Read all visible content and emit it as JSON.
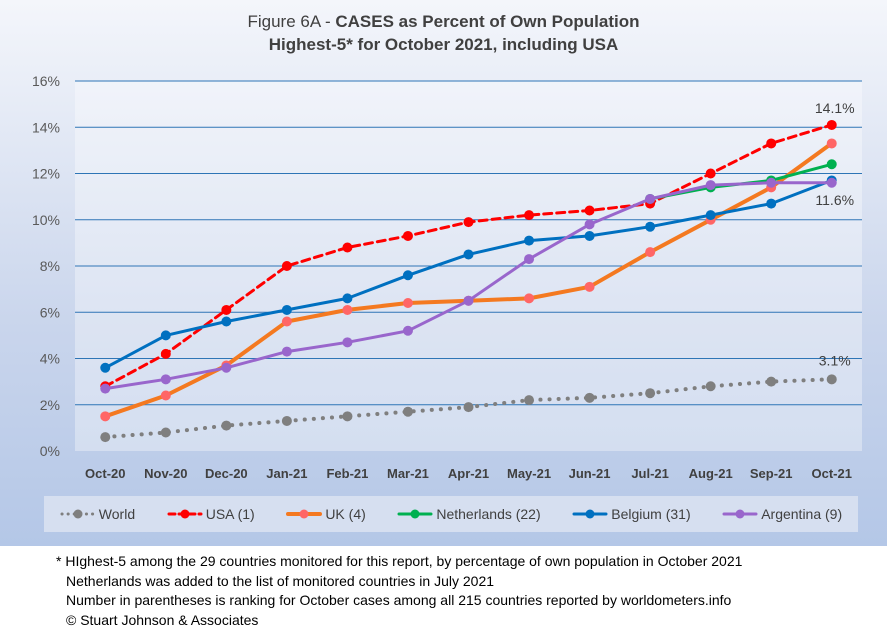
{
  "chart_data": {
    "type": "line",
    "title": "Figure 6A - CASES as Percent of Own Population",
    "title_prefix": "Figure 6A - ",
    "title_bold": "CASES as Percent of Own Population",
    "subtitle": "Highest-5* for October 2021, including USA",
    "xlabel": "",
    "ylabel": "",
    "categories": [
      "Oct-20",
      "Nov-20",
      "Dec-20",
      "Jan-21",
      "Feb-21",
      "Mar-21",
      "Apr-21",
      "May-21",
      "Jun-21",
      "Jul-21",
      "Aug-21",
      "Sep-21",
      "Oct-21"
    ],
    "ylim": [
      0,
      16
    ],
    "yticks": [
      "0%",
      "2%",
      "4%",
      "6%",
      "8%",
      "10%",
      "12%",
      "14%",
      "16%"
    ],
    "grid": true,
    "legend_position": "bottom",
    "series": [
      {
        "name": "World",
        "color": "#7f7f7f",
        "style": "dotted",
        "values": [
          0.6,
          0.8,
          1.1,
          1.3,
          1.5,
          1.7,
          1.9,
          2.2,
          2.3,
          2.5,
          2.8,
          3.0,
          3.1
        ]
      },
      {
        "name": "USA (1)",
        "color": "#ff0000",
        "style": "dashed",
        "values": [
          2.8,
          4.2,
          6.1,
          8.0,
          8.8,
          9.3,
          9.9,
          10.2,
          10.4,
          10.7,
          12.0,
          13.3,
          14.1
        ]
      },
      {
        "name": "UK (4)",
        "color": "#f47920",
        "marker_color": "#ff6666",
        "style": "solid-thick",
        "values": [
          1.5,
          2.4,
          3.7,
          5.6,
          6.1,
          6.4,
          6.5,
          6.6,
          7.1,
          8.6,
          10.0,
          11.4,
          13.3
        ]
      },
      {
        "name": "Netherlands (22)",
        "color": "#00b050",
        "style": "solid",
        "values": [
          null,
          null,
          null,
          null,
          null,
          null,
          null,
          null,
          null,
          10.9,
          11.4,
          11.7,
          12.4
        ]
      },
      {
        "name": "Belgium (31)",
        "color": "#0070c0",
        "style": "solid",
        "values": [
          3.6,
          5.0,
          5.6,
          6.1,
          6.6,
          7.6,
          8.5,
          9.1,
          9.3,
          9.7,
          10.2,
          10.7,
          11.7
        ]
      },
      {
        "name": "Argentina (9)",
        "color": "#9966cc",
        "style": "solid",
        "values": [
          2.7,
          3.1,
          3.6,
          4.3,
          4.7,
          5.2,
          6.5,
          8.3,
          9.8,
          10.9,
          11.5,
          11.6,
          11.6
        ]
      }
    ],
    "annotations": [
      {
        "text": "14.1%",
        "series": "USA (1)",
        "category": "Oct-21",
        "value": 14.1
      },
      {
        "text": "11.6%",
        "series": "Argentina (9)",
        "category": "Oct-21",
        "value": 11.6
      },
      {
        "text": "3.1%",
        "series": "World",
        "category": "Oct-21",
        "value": 3.1
      }
    ]
  },
  "notes": [
    "* HIghest-5 among the 29 countries monitored for this report, by percentage of own population in October 2021",
    "Netherlands was added to the list of monitored countries in July 2021",
    "Number in parentheses is ranking for October cases among all 215 countries reported by worldometers.info",
    "© Stuart Johnson & Associates"
  ]
}
